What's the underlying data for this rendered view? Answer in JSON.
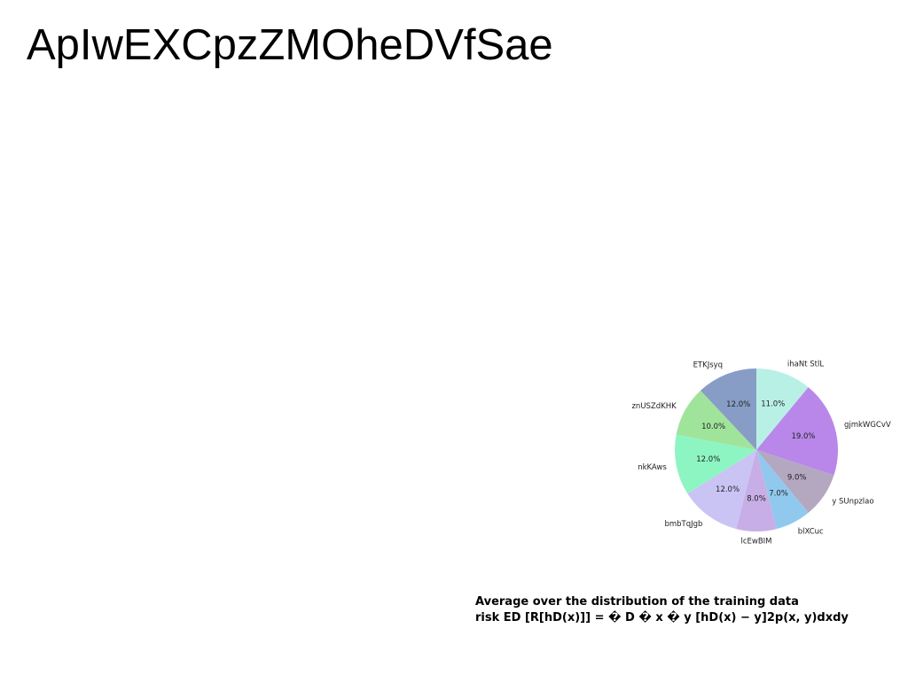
{
  "page": {
    "title": "ApIwEXCpzZMOheDVfSae"
  },
  "caption": {
    "line1": "Average over the distribution of the training data",
    "line2": "risk ED [R[hD(x)]] = � D � x � y [hD(x) − y]2p(x, y)dxdy"
  },
  "chart_data": {
    "type": "pie",
    "start_angle": "top",
    "direction": "clockwise",
    "slices": [
      {
        "label": "ihaNt StlL",
        "value": 11.0,
        "pct_label": "11.0%",
        "color": "#b9f0e6"
      },
      {
        "label": "gjmkWGCvV",
        "value": 19.0,
        "pct_label": "19.0%",
        "color": "#b987ea"
      },
      {
        "label": "y SUnpzlao",
        "value": 9.0,
        "pct_label": "9.0%",
        "color": "#b4a8c0"
      },
      {
        "label": "blXCuc",
        "value": 7.0,
        "pct_label": "7.0%",
        "color": "#91c9ee"
      },
      {
        "label": "lcEwBIM",
        "value": 8.0,
        "pct_label": "8.0%",
        "color": "#c8aee6"
      },
      {
        "label": "bmbTqJgb",
        "value": 12.0,
        "pct_label": "12.0%",
        "color": "#cac4f5"
      },
      {
        "label": "nkKAws",
        "value": 12.0,
        "pct_label": "12.0%",
        "color": "#8df5c2"
      },
      {
        "label": "znUSZdKHK",
        "value": 10.0,
        "pct_label": "10.0%",
        "color": "#a0e49c"
      },
      {
        "label": "ETKJsyq",
        "value": 12.0,
        "pct_label": "12.0%",
        "color": "#879dc6"
      }
    ]
  }
}
